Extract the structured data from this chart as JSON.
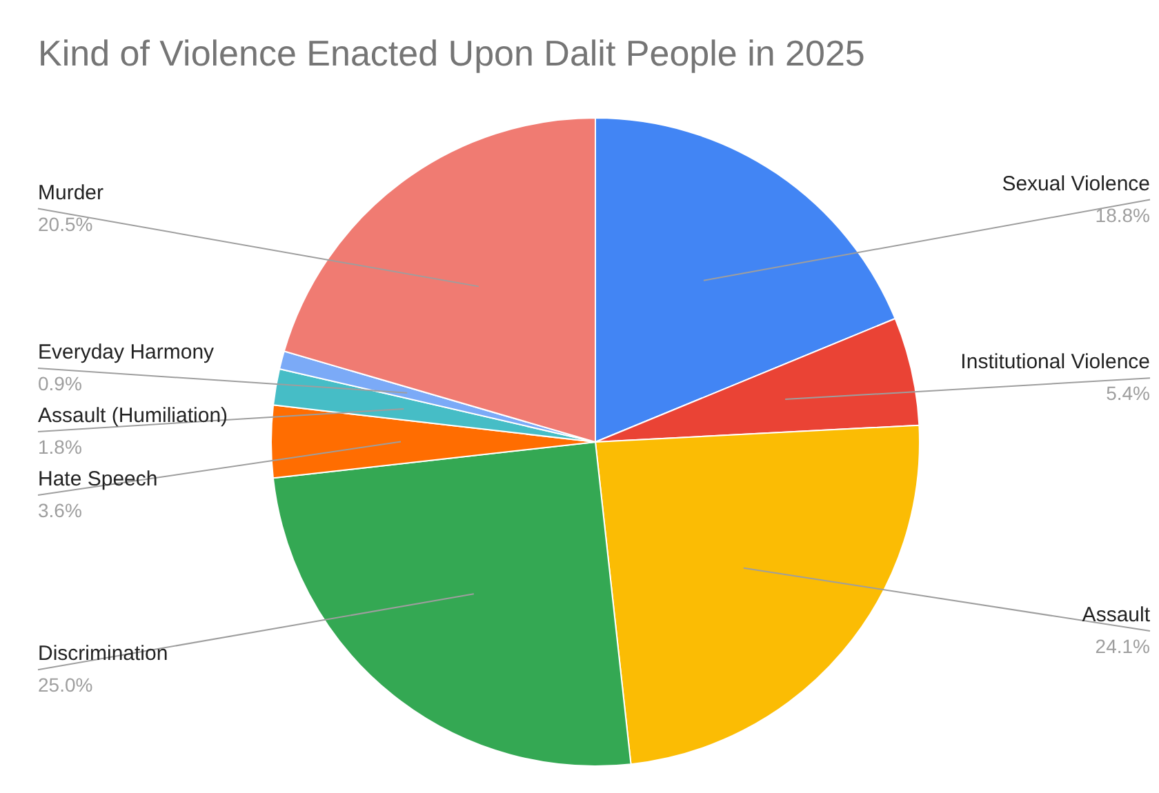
{
  "chart_data": {
    "type": "pie",
    "title": "Kind of Violence Enacted Upon Dalit People in 2025",
    "categories": [
      "Sexual Violence",
      "Institutional Violence",
      "Assault",
      "Discrimination",
      "Hate Speech",
      "Assault (Humiliation)",
      "Everyday Harmony",
      "Murder"
    ],
    "values": [
      18.8,
      5.4,
      24.1,
      25.0,
      3.6,
      1.8,
      0.9,
      20.5
    ],
    "colors": [
      "#4285f4",
      "#ea4335",
      "#fbbc04",
      "#34a853",
      "#ff6d01",
      "#46bdc6",
      "#7baaf7",
      "#f07b72"
    ],
    "value_labels": [
      "18.8%",
      "5.4%",
      "24.1%",
      "25.0%",
      "3.6%",
      "1.8%",
      "0.9%",
      "20.5%"
    ]
  }
}
